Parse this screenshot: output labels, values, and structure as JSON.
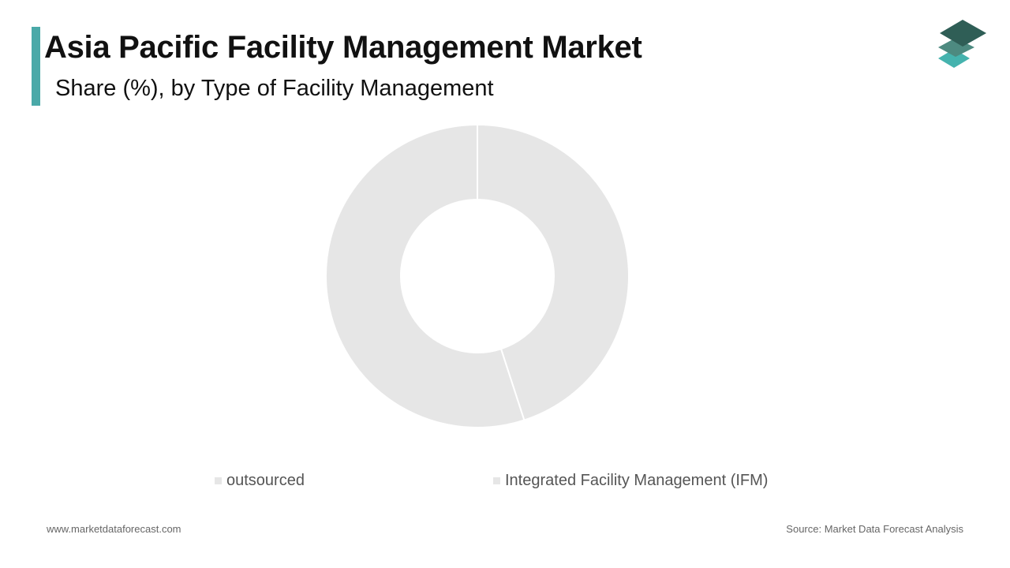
{
  "header": {
    "title": "Asia Pacific Facility Management Market",
    "subtitle": "Share (%), by Type of Facility Management"
  },
  "footer": {
    "website": "www.marketdataforecast.com",
    "source": "Source: Market Data Forecast Analysis"
  },
  "colors": {
    "accent": "#4aa9a8",
    "slice": "#e6e6e6",
    "slice_border": "#ffffff",
    "legend_swatch": "#e6e6e6",
    "logo_top": "#2f5e56",
    "logo_mid": "#4d8a80",
    "logo_bottom": "#45b3ae"
  },
  "logo": {
    "icon": "stacked-layers-icon"
  },
  "chart_data": {
    "type": "pie",
    "donut": true,
    "categories": [
      "outsourced",
      "Integrated Facility Management (IFM)"
    ],
    "values": [
      45,
      55
    ],
    "legend_position": "bottom"
  }
}
